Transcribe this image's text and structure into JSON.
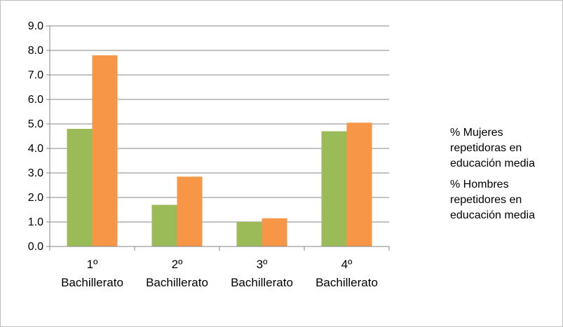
{
  "chart_data": {
    "type": "bar",
    "categories": [
      [
        "1º",
        "Bachillerato"
      ],
      [
        "2º",
        "Bachillerato"
      ],
      [
        "3º",
        "Bachillerato"
      ],
      [
        "4º",
        "Bachillerato"
      ]
    ],
    "series": [
      {
        "name": "% Mujeres repetidoras en educación media",
        "color": "#9BBB59",
        "values": [
          4.8,
          1.7,
          1.0,
          4.7
        ]
      },
      {
        "name": "% Hombres repetidores en educación media",
        "color": "#F79646",
        "values": [
          7.8,
          2.85,
          1.15,
          5.05
        ]
      }
    ],
    "y_ticks": [
      "0.0",
      "1.0",
      "2.0",
      "3.0",
      "4.0",
      "5.0",
      "6.0",
      "7.0",
      "8.0",
      "9.0"
    ],
    "ylim": [
      0,
      9
    ],
    "title": "",
    "xlabel": "",
    "ylabel": "",
    "grid": true,
    "legend_position": "right"
  }
}
